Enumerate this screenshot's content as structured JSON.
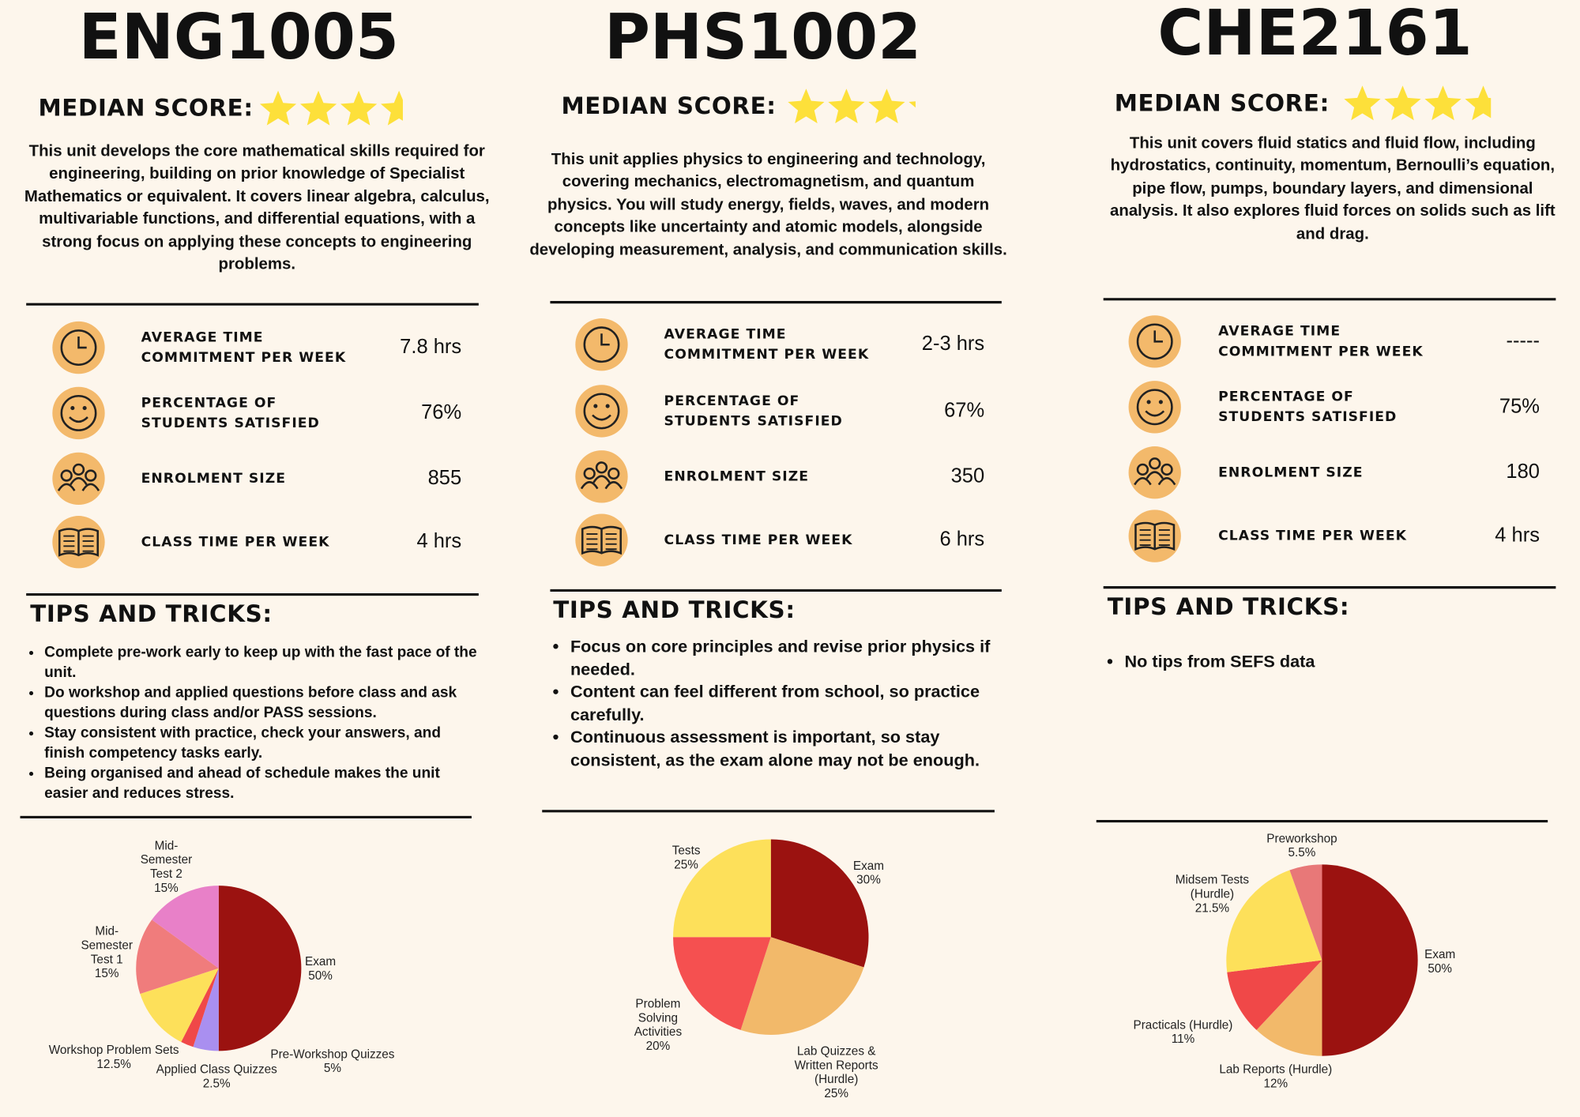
{
  "units": [
    {
      "code": "ENG1005",
      "median_score_label": "MEDIAN SCORE:",
      "median_stars": 3.6,
      "description": "This unit develops the core mathematical skills required for engineering, building on prior knowledge of Specialist Mathematics or equivalent. It covers linear algebra, calculus, multivariable functions, and differential equations, with a strong focus on applying these concepts to engineering problems.",
      "stats": [
        {
          "label": "AVERAGE TIME COMMITMENT PER WEEK",
          "value": "7.8 hrs"
        },
        {
          "label": "PERCENTAGE OF STUDENTS SATISFIED",
          "value": "76%"
        },
        {
          "label": "ENROLMENT SIZE",
          "value": "855"
        },
        {
          "label": "CLASS TIME PER WEEK",
          "value": "4 hrs"
        }
      ],
      "tips_heading": "TIPS AND TRICKS:",
      "tips": [
        "Complete pre-work early to keep up with the fast pace of the unit.",
        "Do workshop and applied questions before class and ask questions during class and/or PASS sessions.",
        "Stay consistent with practice, check your answers, and finish competency tasks early.",
        "Being organised and ahead of schedule makes the unit easier and reduces stress."
      ],
      "assessment_chart": {
        "type": "pie",
        "categories": [
          "Exam",
          "Pre-Workshop Quizzes",
          "Applied Class Quizzes",
          "Workshop Problem Sets",
          "Mid-Semester Test 1",
          "Mid-Semester Test 2"
        ],
        "values": [
          50,
          5,
          2.5,
          12.5,
          15,
          15
        ],
        "value_labels": [
          "50%",
          "5%",
          "2.5%",
          "12.5%",
          "15%",
          "15%"
        ],
        "colors": [
          "#9b1210",
          "#a98ff0",
          "#f04848",
          "#fde05a",
          "#f07c7c",
          "#e880c8"
        ]
      }
    },
    {
      "code": "PHS1002",
      "median_score_label": "MEDIAN SCORE:",
      "median_stars": 3.2,
      "description": "This unit applies physics to engineering and technology, covering mechanics, electromagnetism, and quantum physics. You will study energy, fields, waves, and modern concepts like uncertainty and atomic models, alongside developing measurement, analysis, and communication skills.",
      "stats": [
        {
          "label": "AVERAGE TIME COMMITMENT PER WEEK",
          "value": "2-3 hrs"
        },
        {
          "label": "PERCENTAGE OF STUDENTS SATISFIED",
          "value": "67%"
        },
        {
          "label": "ENROLMENT SIZE",
          "value": "350"
        },
        {
          "label": "CLASS TIME PER WEEK",
          "value": "6 hrs"
        }
      ],
      "tips_heading": "TIPS AND TRICKS:",
      "tips": [
        "Focus on core principles and revise prior physics if needed.",
        "Content can feel different from school, so practice carefully.",
        "Continuous assessment is important, so stay consistent, as the exam alone may not be enough."
      ],
      "assessment_chart": {
        "type": "pie",
        "categories": [
          "Exam",
          "Lab Quizzes & Written Reports (Hurdle)",
          "Problem Solving Activities",
          "Tests"
        ],
        "values": [
          30,
          25,
          20,
          25
        ],
        "value_labels": [
          "30%",
          "25%",
          "20%",
          "25%"
        ],
        "colors": [
          "#9b1210",
          "#f2b96a",
          "#f55050",
          "#fde05a"
        ]
      }
    },
    {
      "code": "CHE2161",
      "median_score_label": "MEDIAN SCORE:",
      "median_stars": 3.7,
      "description": "This unit covers fluid statics and fluid flow, including hydrostatics, continuity, momentum, Bernoulli’s equation, pipe flow, pumps, boundary layers, and dimensional analysis. It also explores fluid forces on solids such as lift and drag.",
      "stats": [
        {
          "label": "AVERAGE TIME COMMITMENT PER WEEK",
          "value": "-----"
        },
        {
          "label": "PERCENTAGE OF STUDENTS SATISFIED",
          "value": "75%"
        },
        {
          "label": "ENROLMENT SIZE",
          "value": "180"
        },
        {
          "label": "CLASS TIME PER WEEK",
          "value": "4 hrs"
        }
      ],
      "tips_heading": "TIPS AND TRICKS:",
      "tips": [
        "No  tips from SEFS data"
      ],
      "assessment_chart": {
        "type": "pie",
        "categories": [
          "Exam",
          "Lab Reports (Hurdle)",
          "Practicals (Hurdle)",
          "Midsem Tests (Hurdle)",
          "Preworkshop"
        ],
        "values": [
          50,
          12,
          11,
          21.5,
          5.5
        ],
        "value_labels": [
          "50%",
          "12%",
          "11%",
          "21.5%",
          "5.5%"
        ],
        "colors": [
          "#9b1210",
          "#f2b96a",
          "#f04848",
          "#fde05a",
          "#e87878"
        ]
      }
    }
  ]
}
